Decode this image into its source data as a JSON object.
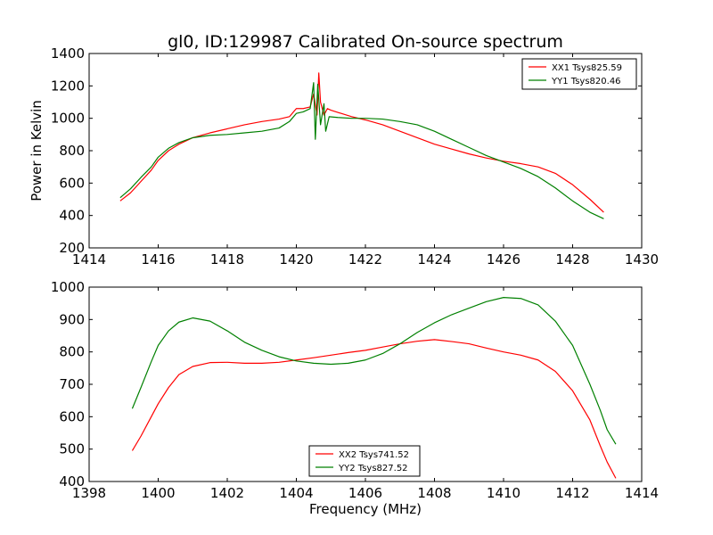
{
  "figure": {
    "title": "gl0, ID:129987 Calibrated On-source spectrum"
  },
  "chart_data": [
    {
      "type": "line",
      "title": "gl0, ID:129987 Calibrated On-source spectrum",
      "xlabel": "",
      "ylabel": "Power in Kelvin",
      "xlim": [
        1414,
        1430
      ],
      "ylim": [
        200,
        1400
      ],
      "xticks": [
        1414,
        1416,
        1418,
        1420,
        1422,
        1424,
        1426,
        1428,
        1430
      ],
      "yticks": [
        200,
        400,
        600,
        800,
        1000,
        1200,
        1400
      ],
      "grid": false,
      "legend_position": "top-right",
      "series": [
        {
          "name": "XX1 Tsys825.59",
          "color": "#ff0000",
          "points": [
            [
              1414.9,
              490
            ],
            [
              1415.2,
              540
            ],
            [
              1415.5,
              610
            ],
            [
              1415.8,
              680
            ],
            [
              1416.0,
              740
            ],
            [
              1416.3,
              800
            ],
            [
              1416.6,
              840
            ],
            [
              1417.0,
              880
            ],
            [
              1417.5,
              910
            ],
            [
              1418.0,
              935
            ],
            [
              1418.5,
              960
            ],
            [
              1419.0,
              980
            ],
            [
              1419.5,
              995
            ],
            [
              1419.8,
              1010
            ],
            [
              1420.0,
              1060
            ],
            [
              1420.2,
              1060
            ],
            [
              1420.4,
              1070
            ],
            [
              1420.5,
              1150
            ],
            [
              1420.6,
              1020
            ],
            [
              1420.65,
              1280
            ],
            [
              1420.7,
              1100
            ],
            [
              1420.8,
              1020
            ],
            [
              1420.9,
              1060
            ],
            [
              1421.0,
              1050
            ],
            [
              1421.3,
              1030
            ],
            [
              1421.6,
              1010
            ],
            [
              1422.0,
              990
            ],
            [
              1422.5,
              960
            ],
            [
              1423.0,
              920
            ],
            [
              1423.5,
              880
            ],
            [
              1424.0,
              840
            ],
            [
              1424.5,
              810
            ],
            [
              1425.0,
              780
            ],
            [
              1425.5,
              755
            ],
            [
              1426.0,
              735
            ],
            [
              1426.5,
              720
            ],
            [
              1427.0,
              700
            ],
            [
              1427.5,
              660
            ],
            [
              1428.0,
              590
            ],
            [
              1428.5,
              500
            ],
            [
              1428.9,
              420
            ]
          ]
        },
        {
          "name": "YY1 Tsys820.46",
          "color": "#008000",
          "points": [
            [
              1414.9,
              510
            ],
            [
              1415.2,
              565
            ],
            [
              1415.5,
              635
            ],
            [
              1415.8,
              700
            ],
            [
              1416.0,
              760
            ],
            [
              1416.3,
              815
            ],
            [
              1416.6,
              850
            ],
            [
              1417.0,
              880
            ],
            [
              1417.5,
              895
            ],
            [
              1418.0,
              900
            ],
            [
              1418.5,
              910
            ],
            [
              1419.0,
              920
            ],
            [
              1419.5,
              940
            ],
            [
              1419.8,
              980
            ],
            [
              1420.0,
              1030
            ],
            [
              1420.2,
              1040
            ],
            [
              1420.4,
              1060
            ],
            [
              1420.5,
              1220
            ],
            [
              1420.55,
              870
            ],
            [
              1420.62,
              1210
            ],
            [
              1420.7,
              960
            ],
            [
              1420.8,
              1090
            ],
            [
              1420.85,
              920
            ],
            [
              1420.95,
              1010
            ],
            [
              1421.2,
              1005
            ],
            [
              1421.6,
              1000
            ],
            [
              1422.0,
              1000
            ],
            [
              1422.5,
              995
            ],
            [
              1423.0,
              980
            ],
            [
              1423.5,
              960
            ],
            [
              1424.0,
              920
            ],
            [
              1424.5,
              870
            ],
            [
              1425.0,
              820
            ],
            [
              1425.5,
              770
            ],
            [
              1426.0,
              730
            ],
            [
              1426.5,
              690
            ],
            [
              1427.0,
              640
            ],
            [
              1427.5,
              570
            ],
            [
              1428.0,
              490
            ],
            [
              1428.5,
              420
            ],
            [
              1428.9,
              380
            ]
          ]
        }
      ]
    },
    {
      "type": "line",
      "title": "",
      "xlabel": "Frequency (MHz)",
      "ylabel": "",
      "xlim": [
        1398,
        1414
      ],
      "ylim": [
        400,
        1000
      ],
      "xticks": [
        1398,
        1400,
        1402,
        1404,
        1406,
        1408,
        1410,
        1412,
        1414
      ],
      "yticks": [
        400,
        500,
        600,
        700,
        800,
        900,
        1000
      ],
      "grid": false,
      "legend_position": "bottom-center",
      "series": [
        {
          "name": "XX2 Tsys741.52",
          "color": "#ff0000",
          "points": [
            [
              1399.25,
              495
            ],
            [
              1399.5,
              540
            ],
            [
              1399.8,
              600
            ],
            [
              1400.0,
              640
            ],
            [
              1400.3,
              690
            ],
            [
              1400.6,
              730
            ],
            [
              1401.0,
              755
            ],
            [
              1401.5,
              767
            ],
            [
              1402.0,
              768
            ],
            [
              1402.5,
              765
            ],
            [
              1403.0,
              765
            ],
            [
              1403.5,
              768
            ],
            [
              1404.0,
              775
            ],
            [
              1404.5,
              782
            ],
            [
              1405.0,
              790
            ],
            [
              1405.5,
              798
            ],
            [
              1406.0,
              805
            ],
            [
              1406.5,
              815
            ],
            [
              1407.0,
              825
            ],
            [
              1407.5,
              833
            ],
            [
              1408.0,
              838
            ],
            [
              1408.5,
              832
            ],
            [
              1409.0,
              825
            ],
            [
              1409.5,
              812
            ],
            [
              1410.0,
              800
            ],
            [
              1410.5,
              790
            ],
            [
              1411.0,
              775
            ],
            [
              1411.5,
              740
            ],
            [
              1412.0,
              680
            ],
            [
              1412.5,
              590
            ],
            [
              1412.8,
              510
            ],
            [
              1413.0,
              460
            ],
            [
              1413.25,
              410
            ]
          ]
        },
        {
          "name": "YY2 Tsys827.52",
          "color": "#008000",
          "points": [
            [
              1399.25,
              625
            ],
            [
              1399.5,
              690
            ],
            [
              1399.8,
              770
            ],
            [
              1400.0,
              820
            ],
            [
              1400.3,
              865
            ],
            [
              1400.6,
              892
            ],
            [
              1401.0,
              905
            ],
            [
              1401.5,
              895
            ],
            [
              1402.0,
              865
            ],
            [
              1402.5,
              830
            ],
            [
              1403.0,
              805
            ],
            [
              1403.5,
              785
            ],
            [
              1404.0,
              772
            ],
            [
              1404.5,
              765
            ],
            [
              1405.0,
              762
            ],
            [
              1405.5,
              765
            ],
            [
              1406.0,
              775
            ],
            [
              1406.5,
              795
            ],
            [
              1407.0,
              825
            ],
            [
              1407.5,
              860
            ],
            [
              1408.0,
              890
            ],
            [
              1408.5,
              915
            ],
            [
              1409.0,
              935
            ],
            [
              1409.5,
              955
            ],
            [
              1410.0,
              968
            ],
            [
              1410.5,
              965
            ],
            [
              1411.0,
              945
            ],
            [
              1411.5,
              895
            ],
            [
              1412.0,
              820
            ],
            [
              1412.5,
              700
            ],
            [
              1412.8,
              620
            ],
            [
              1413.0,
              560
            ],
            [
              1413.25,
              515
            ]
          ]
        }
      ]
    }
  ]
}
